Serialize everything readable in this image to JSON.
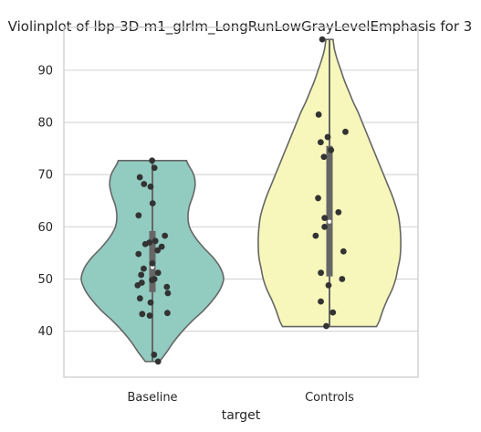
{
  "chart_data": {
    "type": "violin",
    "title": "Violinplot of lbp-3D-m1_glrlm_LongRunLowGrayLevelEmphasis for 3",
    "xlabel": "target",
    "ylabel": "",
    "categories": [
      "Baseline",
      "Controls"
    ],
    "ylim": [
      31.2,
      98.2
    ],
    "yticks": [
      40,
      50,
      60,
      70,
      80,
      90
    ],
    "grid": "horizontal",
    "colors": {
      "Baseline": "#92cbc0",
      "Controls": "#f7f7bb",
      "outline": "#666666",
      "points": "#333333",
      "inner_box": "#666666",
      "median": "#ffffff",
      "grid": "#d3d3d3",
      "frame": "#cccccc"
    },
    "violins": [
      {
        "name": "Baseline",
        "min": 34.2,
        "max": 72.7,
        "q1": 47.5,
        "median": 52.3,
        "q3": 59.2,
        "density": [
          [
            34.2,
            0.1
          ],
          [
            36,
            0.2
          ],
          [
            38,
            0.3
          ],
          [
            40,
            0.42
          ],
          [
            42,
            0.56
          ],
          [
            44,
            0.72
          ],
          [
            46,
            0.85
          ],
          [
            48,
            0.95
          ],
          [
            50,
            1.0
          ],
          [
            52,
            0.96
          ],
          [
            54,
            0.86
          ],
          [
            56,
            0.72
          ],
          [
            58,
            0.6
          ],
          [
            60,
            0.52
          ],
          [
            62,
            0.5
          ],
          [
            64,
            0.52
          ],
          [
            66,
            0.57
          ],
          [
            68,
            0.6
          ],
          [
            70,
            0.58
          ],
          [
            72,
            0.5
          ],
          [
            72.7,
            0.48
          ]
        ],
        "points": [
          72.7,
          71.3,
          69.5,
          68.2,
          67.7,
          64.5,
          62.2,
          58.3,
          57.3,
          57.0,
          56.7,
          56.2,
          55.5,
          54.8,
          53.0,
          52.0,
          51.2,
          50.8,
          50.0,
          49.8,
          49.3,
          48.8,
          48.5,
          47.3,
          46.3,
          45.5,
          43.5,
          43.3,
          43.0,
          35.5,
          34.2
        ]
      },
      {
        "name": "Controls",
        "min": 40.9,
        "max": 95.9,
        "q1": 50.5,
        "median": 61.0,
        "q3": 75.5,
        "density": [
          [
            40.9,
            0.66
          ],
          [
            42,
            0.7
          ],
          [
            44,
            0.75
          ],
          [
            46,
            0.81
          ],
          [
            48,
            0.88
          ],
          [
            50,
            0.93
          ],
          [
            52,
            0.96
          ],
          [
            54,
            0.99
          ],
          [
            56,
            1.0
          ],
          [
            58,
            1.0
          ],
          [
            60,
            0.99
          ],
          [
            62,
            0.97
          ],
          [
            64,
            0.93
          ],
          [
            66,
            0.88
          ],
          [
            68,
            0.82
          ],
          [
            70,
            0.76
          ],
          [
            72,
            0.7
          ],
          [
            74,
            0.64
          ],
          [
            76,
            0.58
          ],
          [
            78,
            0.52
          ],
          [
            80,
            0.46
          ],
          [
            82,
            0.4
          ],
          [
            84,
            0.33
          ],
          [
            86,
            0.27
          ],
          [
            88,
            0.21
          ],
          [
            90,
            0.16
          ],
          [
            92,
            0.11
          ],
          [
            94,
            0.07
          ],
          [
            95.9,
            0.05
          ]
        ],
        "points": [
          95.9,
          81.5,
          78.2,
          77.2,
          76.2,
          74.7,
          73.4,
          65.5,
          62.8,
          61.7,
          60.0,
          58.3,
          55.3,
          51.2,
          50.0,
          48.8,
          45.7,
          43.6,
          41.0
        ]
      }
    ]
  }
}
